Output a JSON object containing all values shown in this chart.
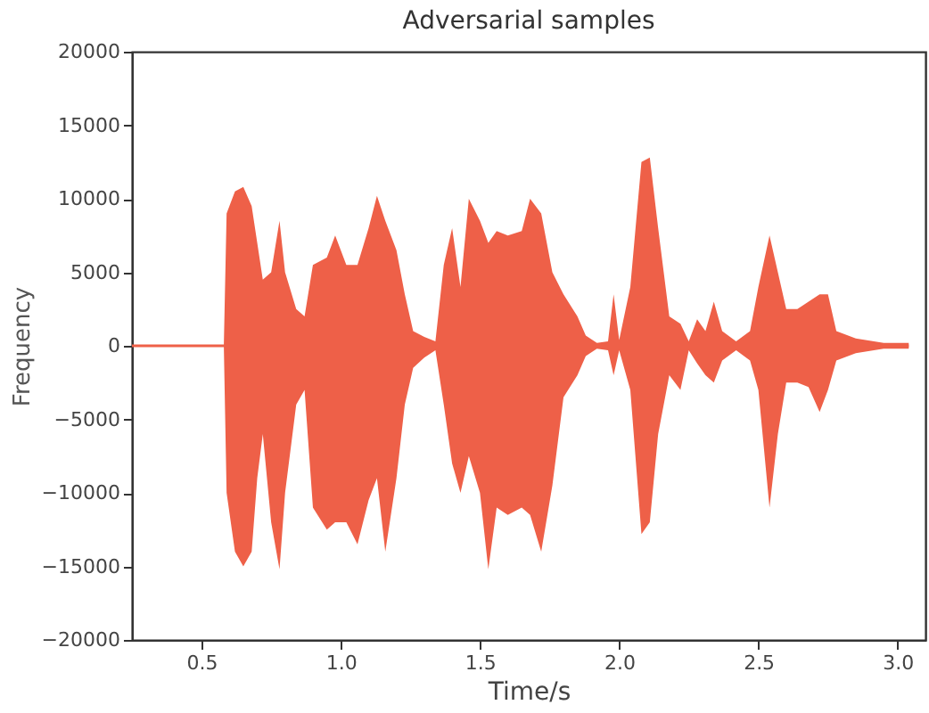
{
  "chart_data": {
    "type": "line",
    "title": "Adversarial samples",
    "xlabel": "Time/s",
    "ylabel": "Frequency",
    "x": [
      0.25,
      0.58,
      0.59,
      0.62,
      0.65,
      0.68,
      0.7,
      0.72,
      0.75,
      0.78,
      0.8,
      0.84,
      0.87,
      0.9,
      0.95,
      0.98,
      1.02,
      1.06,
      1.1,
      1.13,
      1.16,
      1.2,
      1.23,
      1.26,
      1.3,
      1.34,
      1.37,
      1.4,
      1.43,
      1.46,
      1.5,
      1.53,
      1.56,
      1.6,
      1.65,
      1.68,
      1.72,
      1.76,
      1.8,
      1.85,
      1.88,
      1.92,
      1.96,
      1.98,
      2.0,
      2.04,
      2.08,
      2.11,
      2.14,
      2.18,
      2.22,
      2.25,
      2.28,
      2.31,
      2.34,
      2.37,
      2.42,
      2.47,
      2.5,
      2.54,
      2.57,
      2.6,
      2.64,
      2.68,
      2.72,
      2.75,
      2.78,
      2.85,
      2.95,
      3.04
    ],
    "series": [
      {
        "color": "#ee6048",
        "values": [
          0,
          0,
          0,
          0,
          0,
          0,
          0,
          0,
          0,
          0,
          0,
          0,
          0,
          0,
          0,
          0,
          0,
          0,
          0,
          0,
          0,
          0,
          0,
          0,
          0,
          0,
          0,
          0,
          0,
          0,
          0,
          0,
          0,
          0,
          0,
          0,
          0,
          0,
          0,
          0,
          0,
          0,
          0,
          0,
          0,
          0,
          0,
          0,
          0,
          0,
          0,
          0,
          0,
          0,
          0,
          0,
          0,
          0,
          0,
          0,
          0,
          0,
          0,
          0,
          0,
          0,
          0,
          0,
          0,
          0
        ],
        "upper": [
          0,
          0,
          9000,
          10500,
          10800,
          9500,
          7000,
          4500,
          5000,
          8500,
          5000,
          2500,
          2000,
          5500,
          6000,
          7500,
          5500,
          5500,
          8000,
          10200,
          8500,
          6500,
          3500,
          1000,
          600,
          300,
          5500,
          8000,
          4000,
          10000,
          8500,
          7000,
          7800,
          7500,
          7800,
          10000,
          9000,
          5000,
          3500,
          2000,
          700,
          200,
          300,
          3500,
          400,
          4000,
          12500,
          12800,
          8000,
          2000,
          1500,
          300,
          1800,
          1000,
          3000,
          1000,
          300,
          1000,
          4000,
          7500,
          5000,
          2500,
          2500,
          3000,
          3500,
          3500,
          1000,
          500,
          200,
          200
        ],
        "lower": [
          0,
          0,
          -10000,
          -14000,
          -15000,
          -14000,
          -9000,
          -6000,
          -12000,
          -15200,
          -10000,
          -4000,
          -3000,
          -11000,
          -12500,
          -12000,
          -12000,
          -13500,
          -10500,
          -9000,
          -14000,
          -9000,
          -4000,
          -1500,
          -800,
          -300,
          -4000,
          -8000,
          -10000,
          -7500,
          -10000,
          -15200,
          -11000,
          -11500,
          -11000,
          -11500,
          -14000,
          -9500,
          -3500,
          -2000,
          -700,
          -200,
          -300,
          -2000,
          -300,
          -3000,
          -12800,
          -12000,
          -6000,
          -2000,
          -3000,
          -300,
          -1200,
          -2000,
          -2500,
          -1000,
          -300,
          -1000,
          -3000,
          -11000,
          -6000,
          -2500,
          -2500,
          -2800,
          -4500,
          -3000,
          -1000,
          -500,
          -200,
          -200
        ]
      }
    ],
    "xlim": [
      0.25,
      3.1
    ],
    "xticks": [
      0.5,
      {
        "value": 1,
        "label": "1.0"
      },
      1.5,
      {
        "value": 2,
        "label": "2.0"
      },
      2.5,
      {
        "value": 3,
        "label": "3.0"
      }
    ],
    "ylim": [
      -20000,
      20000
    ],
    "yticks": [
      {
        "value": -20000,
        "label": "−20000"
      },
      {
        "value": -15000,
        "label": "−15000"
      },
      {
        "value": -10000,
        "label": "−10000"
      },
      {
        "value": -5000,
        "label": "−5000"
      },
      0,
      5000,
      10000,
      15000,
      20000
    ],
    "grid": false,
    "marker": "none",
    "line_style": "solid"
  }
}
